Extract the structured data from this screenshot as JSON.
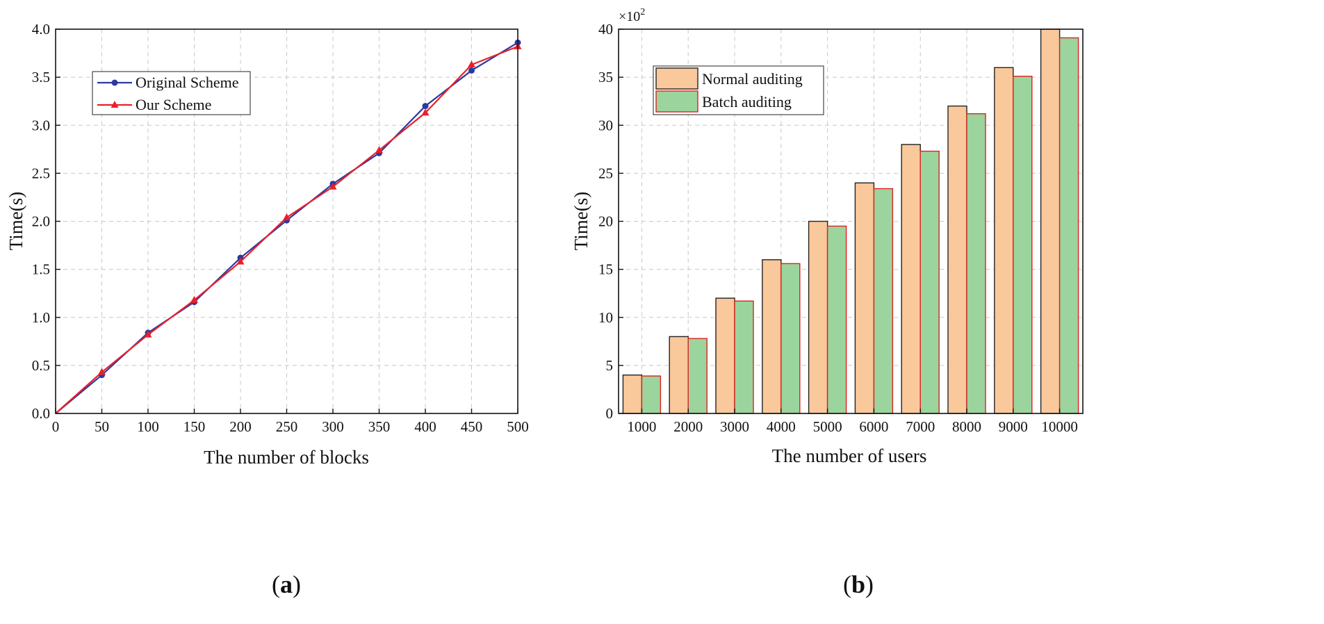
{
  "chart_data": [
    {
      "panel": "(a)",
      "panel_letter": "a",
      "type": "line",
      "title": "",
      "xlabel": "The number of blocks",
      "ylabel": "Time(s)",
      "xlim": [
        0,
        500
      ],
      "ylim": [
        0,
        4.0
      ],
      "xticks": [
        "0",
        "50",
        "100",
        "150",
        "200",
        "250",
        "300",
        "350",
        "400",
        "450",
        "500"
      ],
      "yticks": [
        "0.0",
        "0.5",
        "1.0",
        "1.5",
        "2.0",
        "2.5",
        "3.0",
        "3.5",
        "4.0"
      ],
      "grid": true,
      "legend_position": "top-left",
      "x": [
        0,
        50,
        100,
        150,
        200,
        250,
        300,
        350,
        400,
        450,
        500
      ],
      "series": [
        {
          "name": "Original Scheme",
          "color": "#2b3a9e",
          "marker": "circle",
          "values": [
            0.0,
            0.4,
            0.84,
            1.16,
            1.62,
            2.01,
            2.39,
            2.71,
            3.2,
            3.57,
            3.86
          ]
        },
        {
          "name": "Our Scheme",
          "color": "#e8202a",
          "marker": "triangle",
          "values": [
            0.0,
            0.43,
            0.82,
            1.18,
            1.58,
            2.04,
            2.36,
            2.74,
            3.13,
            3.63,
            3.82
          ]
        }
      ]
    },
    {
      "panel": "(b)",
      "panel_letter": "b",
      "type": "bar",
      "title": "",
      "xlabel": "The number of users",
      "ylabel": "Time(s)",
      "yscale_base": "×10",
      "yscale_exp": "2",
      "ylim": [
        0,
        40
      ],
      "yticks": [
        "0",
        "5",
        "10",
        "15",
        "20",
        "25",
        "30",
        "35",
        "40"
      ],
      "grid": true,
      "legend_position": "top-left",
      "categories": [
        "1000",
        "2000",
        "3000",
        "4000",
        "5000",
        "6000",
        "7000",
        "8000",
        "9000",
        "10000"
      ],
      "series": [
        {
          "name": "Normal auditing",
          "color": "#f9c89b",
          "edge": "#222222",
          "values": [
            4.0,
            8.0,
            12.0,
            16.0,
            20.0,
            24.0,
            28.0,
            32.0,
            36.0,
            40.0
          ]
        },
        {
          "name": "Batch auditing",
          "color": "#9bd49d",
          "edge": "#e02020",
          "values": [
            3.9,
            7.8,
            11.7,
            15.6,
            19.5,
            23.4,
            27.3,
            31.2,
            35.1,
            39.1
          ]
        }
      ]
    }
  ]
}
